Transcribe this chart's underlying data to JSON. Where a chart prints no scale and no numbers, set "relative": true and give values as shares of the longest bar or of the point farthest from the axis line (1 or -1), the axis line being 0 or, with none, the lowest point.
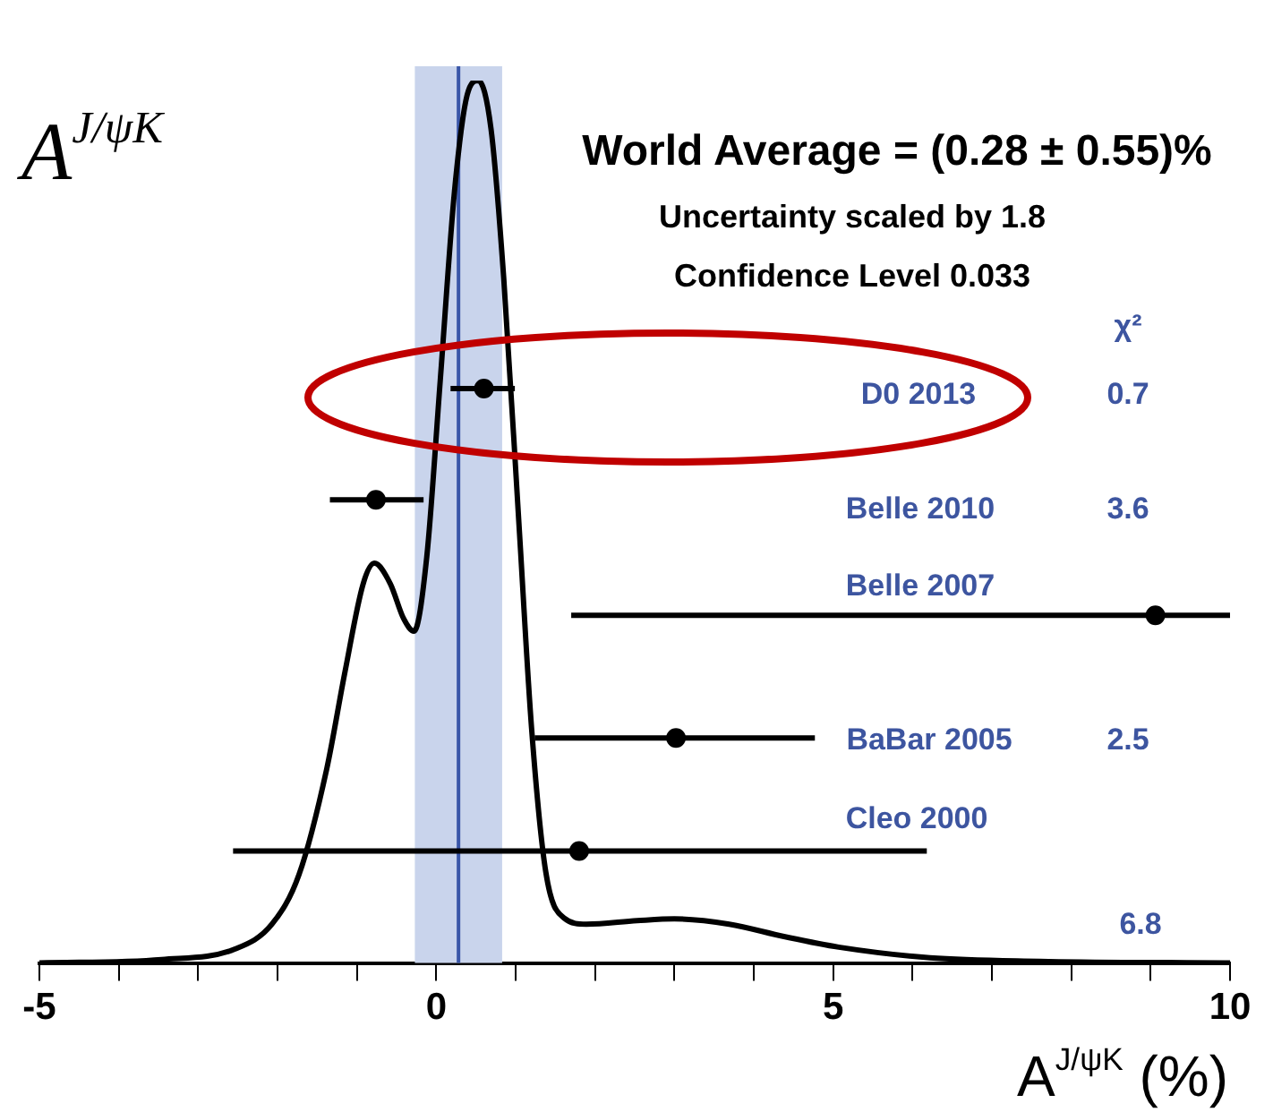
{
  "chart_data": {
    "type": "line",
    "relative": true,
    "title": "A$^{J/ψK}$",
    "xlabel": "A$^{J/ψK}$ (%)",
    "xlim": [
      -5,
      10
    ],
    "xticks": [
      -5,
      {
        "value": -4,
        "label": null
      },
      {
        "value": -3,
        "label": null
      },
      {
        "value": -2,
        "label": null
      },
      {
        "value": -1,
        "label": null
      },
      0,
      {
        "value": 1,
        "label": null
      },
      {
        "value": 2,
        "label": null
      },
      {
        "value": 3,
        "label": null
      },
      {
        "value": 4,
        "label": null
      },
      5,
      {
        "value": 6,
        "label": null
      },
      {
        "value": 7,
        "label": null
      },
      {
        "value": 8,
        "label": null
      },
      {
        "value": 9,
        "label": null
      },
      10
    ],
    "grid": false,
    "legend": false,
    "series": [
      {
        "color": "#000000",
        "marker": "none",
        "x": [
          -5,
          -3.46,
          -2.53,
          -2.07,
          -1.73,
          -1.38,
          -1.15,
          -0.92,
          -0.78,
          -0.58,
          -0.41,
          -0.28,
          -0.12,
          0.05,
          0.23,
          0.39,
          0.53,
          0.69,
          0.85,
          1.04,
          1.2,
          1.38,
          1.61,
          1.89,
          2.53,
          3.0,
          3.69,
          4.38,
          5.07,
          6.22,
          7.6,
          10
        ],
        "values": [
          0,
          0.004,
          0.016,
          0.044,
          0.1,
          0.22,
          0.33,
          0.43,
          0.453,
          0.43,
          0.39,
          0.376,
          0.46,
          0.66,
          0.875,
          0.984,
          1,
          0.945,
          0.776,
          0.5,
          0.267,
          0.103,
          0.051,
          0.044,
          0.048,
          0.05,
          0.044,
          0.03,
          0.018,
          0.006,
          0.002,
          0
        ]
      },
      {
        "type": "scatter",
        "color": "#000000",
        "marker": "circle",
        "x": [
          0.6,
          -0.76,
          9.06,
          3.02,
          1.8
        ],
        "values": [
          0.651,
          0.525,
          0.394,
          0.255,
          0.127
        ],
        "xerrors": [
          [
            0.18,
            0.99
          ],
          [
            -1.34,
            -0.16
          ],
          [
            1.7,
            10
          ],
          [
            1.24,
            4.77
          ],
          [
            -2.56,
            6.18
          ]
        ]
      }
    ],
    "bands": [
      {
        "axis": "x",
        "from": -0.27,
        "to": 0.83,
        "color": "#c9d4ec"
      }
    ],
    "ref_lines": [
      {
        "axis": "x",
        "value": 0.28,
        "color": "#3a56a8"
      }
    ],
    "annotations": [
      "World Average = (0.28 ± 0.55)%",
      "Uncertainty scaled by 1.8",
      "Confidence Level 0.033",
      "χ²",
      "D0 2013",
      "0.7",
      "Belle 2010",
      "3.6",
      "Belle 2007",
      "BaBar 2005",
      "2.5",
      "Cleo 2000",
      "6.8"
    ]
  }
}
